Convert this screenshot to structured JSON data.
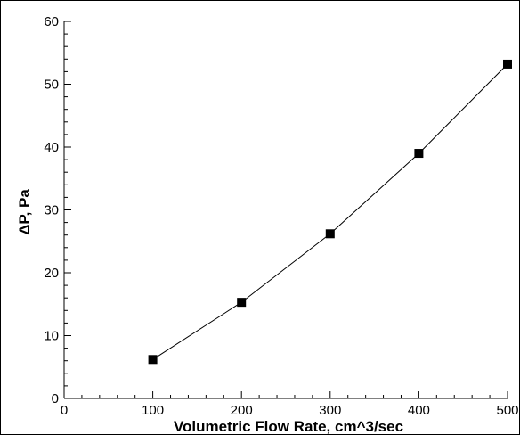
{
  "chart_data": {
    "type": "line",
    "title": "",
    "xlabel": "Volumetric Flow Rate, cm^3/sec",
    "ylabel": "ΔP, Pa",
    "xlim": [
      0,
      500
    ],
    "ylim": [
      0,
      60
    ],
    "x_ticks": [
      0,
      100,
      200,
      300,
      400,
      500
    ],
    "y_ticks": [
      0,
      10,
      20,
      30,
      40,
      50,
      60
    ],
    "x_minor_step": 20,
    "y_minor_step": 2,
    "grid": false,
    "legend": "none",
    "series": [
      {
        "marker": "square",
        "color": "#000000",
        "x": [
          100,
          200,
          300,
          400,
          500
        ],
        "y": [
          6.2,
          15.3,
          26.2,
          39.0,
          53.2
        ]
      }
    ]
  }
}
